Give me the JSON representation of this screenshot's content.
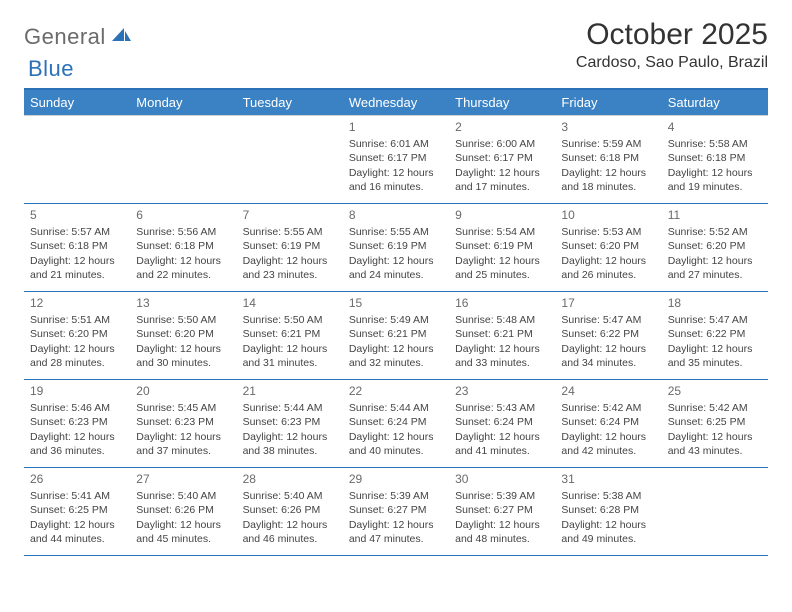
{
  "brand": {
    "word1": "General",
    "word2": "Blue",
    "text_color": "#6b6b6b",
    "accent_color": "#2b71b8"
  },
  "header": {
    "title": "October 2025",
    "location": "Cardoso, Sao Paulo, Brazil"
  },
  "theme": {
    "header_bg": "#3b82c4",
    "header_text": "#ffffff",
    "row_divider": "#2b71b8",
    "background": "#ffffff"
  },
  "weekdays": [
    "Sunday",
    "Monday",
    "Tuesday",
    "Wednesday",
    "Thursday",
    "Friday",
    "Saturday"
  ],
  "weeks": [
    [
      {
        "day": "",
        "sunrise": "",
        "sunset": "",
        "daylight": ""
      },
      {
        "day": "",
        "sunrise": "",
        "sunset": "",
        "daylight": ""
      },
      {
        "day": "",
        "sunrise": "",
        "sunset": "",
        "daylight": ""
      },
      {
        "day": "1",
        "sunrise": "Sunrise: 6:01 AM",
        "sunset": "Sunset: 6:17 PM",
        "daylight": "Daylight: 12 hours and 16 minutes."
      },
      {
        "day": "2",
        "sunrise": "Sunrise: 6:00 AM",
        "sunset": "Sunset: 6:17 PM",
        "daylight": "Daylight: 12 hours and 17 minutes."
      },
      {
        "day": "3",
        "sunrise": "Sunrise: 5:59 AM",
        "sunset": "Sunset: 6:18 PM",
        "daylight": "Daylight: 12 hours and 18 minutes."
      },
      {
        "day": "4",
        "sunrise": "Sunrise: 5:58 AM",
        "sunset": "Sunset: 6:18 PM",
        "daylight": "Daylight: 12 hours and 19 minutes."
      }
    ],
    [
      {
        "day": "5",
        "sunrise": "Sunrise: 5:57 AM",
        "sunset": "Sunset: 6:18 PM",
        "daylight": "Daylight: 12 hours and 21 minutes."
      },
      {
        "day": "6",
        "sunrise": "Sunrise: 5:56 AM",
        "sunset": "Sunset: 6:18 PM",
        "daylight": "Daylight: 12 hours and 22 minutes."
      },
      {
        "day": "7",
        "sunrise": "Sunrise: 5:55 AM",
        "sunset": "Sunset: 6:19 PM",
        "daylight": "Daylight: 12 hours and 23 minutes."
      },
      {
        "day": "8",
        "sunrise": "Sunrise: 5:55 AM",
        "sunset": "Sunset: 6:19 PM",
        "daylight": "Daylight: 12 hours and 24 minutes."
      },
      {
        "day": "9",
        "sunrise": "Sunrise: 5:54 AM",
        "sunset": "Sunset: 6:19 PM",
        "daylight": "Daylight: 12 hours and 25 minutes."
      },
      {
        "day": "10",
        "sunrise": "Sunrise: 5:53 AM",
        "sunset": "Sunset: 6:20 PM",
        "daylight": "Daylight: 12 hours and 26 minutes."
      },
      {
        "day": "11",
        "sunrise": "Sunrise: 5:52 AM",
        "sunset": "Sunset: 6:20 PM",
        "daylight": "Daylight: 12 hours and 27 minutes."
      }
    ],
    [
      {
        "day": "12",
        "sunrise": "Sunrise: 5:51 AM",
        "sunset": "Sunset: 6:20 PM",
        "daylight": "Daylight: 12 hours and 28 minutes."
      },
      {
        "day": "13",
        "sunrise": "Sunrise: 5:50 AM",
        "sunset": "Sunset: 6:20 PM",
        "daylight": "Daylight: 12 hours and 30 minutes."
      },
      {
        "day": "14",
        "sunrise": "Sunrise: 5:50 AM",
        "sunset": "Sunset: 6:21 PM",
        "daylight": "Daylight: 12 hours and 31 minutes."
      },
      {
        "day": "15",
        "sunrise": "Sunrise: 5:49 AM",
        "sunset": "Sunset: 6:21 PM",
        "daylight": "Daylight: 12 hours and 32 minutes."
      },
      {
        "day": "16",
        "sunrise": "Sunrise: 5:48 AM",
        "sunset": "Sunset: 6:21 PM",
        "daylight": "Daylight: 12 hours and 33 minutes."
      },
      {
        "day": "17",
        "sunrise": "Sunrise: 5:47 AM",
        "sunset": "Sunset: 6:22 PM",
        "daylight": "Daylight: 12 hours and 34 minutes."
      },
      {
        "day": "18",
        "sunrise": "Sunrise: 5:47 AM",
        "sunset": "Sunset: 6:22 PM",
        "daylight": "Daylight: 12 hours and 35 minutes."
      }
    ],
    [
      {
        "day": "19",
        "sunrise": "Sunrise: 5:46 AM",
        "sunset": "Sunset: 6:23 PM",
        "daylight": "Daylight: 12 hours and 36 minutes."
      },
      {
        "day": "20",
        "sunrise": "Sunrise: 5:45 AM",
        "sunset": "Sunset: 6:23 PM",
        "daylight": "Daylight: 12 hours and 37 minutes."
      },
      {
        "day": "21",
        "sunrise": "Sunrise: 5:44 AM",
        "sunset": "Sunset: 6:23 PM",
        "daylight": "Daylight: 12 hours and 38 minutes."
      },
      {
        "day": "22",
        "sunrise": "Sunrise: 5:44 AM",
        "sunset": "Sunset: 6:24 PM",
        "daylight": "Daylight: 12 hours and 40 minutes."
      },
      {
        "day": "23",
        "sunrise": "Sunrise: 5:43 AM",
        "sunset": "Sunset: 6:24 PM",
        "daylight": "Daylight: 12 hours and 41 minutes."
      },
      {
        "day": "24",
        "sunrise": "Sunrise: 5:42 AM",
        "sunset": "Sunset: 6:24 PM",
        "daylight": "Daylight: 12 hours and 42 minutes."
      },
      {
        "day": "25",
        "sunrise": "Sunrise: 5:42 AM",
        "sunset": "Sunset: 6:25 PM",
        "daylight": "Daylight: 12 hours and 43 minutes."
      }
    ],
    [
      {
        "day": "26",
        "sunrise": "Sunrise: 5:41 AM",
        "sunset": "Sunset: 6:25 PM",
        "daylight": "Daylight: 12 hours and 44 minutes."
      },
      {
        "day": "27",
        "sunrise": "Sunrise: 5:40 AM",
        "sunset": "Sunset: 6:26 PM",
        "daylight": "Daylight: 12 hours and 45 minutes."
      },
      {
        "day": "28",
        "sunrise": "Sunrise: 5:40 AM",
        "sunset": "Sunset: 6:26 PM",
        "daylight": "Daylight: 12 hours and 46 minutes."
      },
      {
        "day": "29",
        "sunrise": "Sunrise: 5:39 AM",
        "sunset": "Sunset: 6:27 PM",
        "daylight": "Daylight: 12 hours and 47 minutes."
      },
      {
        "day": "30",
        "sunrise": "Sunrise: 5:39 AM",
        "sunset": "Sunset: 6:27 PM",
        "daylight": "Daylight: 12 hours and 48 minutes."
      },
      {
        "day": "31",
        "sunrise": "Sunrise: 5:38 AM",
        "sunset": "Sunset: 6:28 PM",
        "daylight": "Daylight: 12 hours and 49 minutes."
      },
      {
        "day": "",
        "sunrise": "",
        "sunset": "",
        "daylight": ""
      }
    ]
  ]
}
